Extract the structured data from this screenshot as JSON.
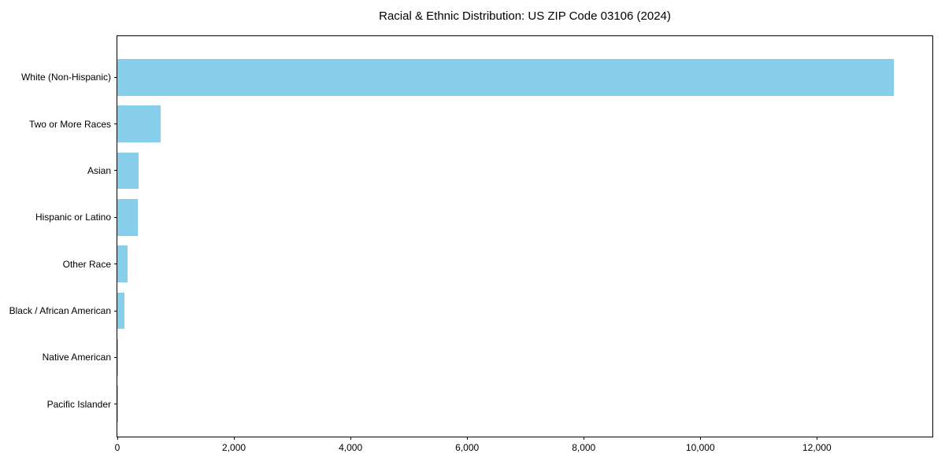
{
  "figure": {
    "background": "#ffffff",
    "text_color": "#000000"
  },
  "chart_data": {
    "type": "bar",
    "orientation": "horizontal",
    "title": "Racial & Ethnic Distribution: US ZIP Code 03106 (2024)",
    "categories": [
      "White (Non-Hispanic)",
      "Two or More Races",
      "Asian",
      "Hispanic or Latino",
      "Other Race",
      "Black / African American",
      "Native American",
      "Pacific Islander"
    ],
    "values": [
      13315,
      745,
      365,
      345,
      170,
      115,
      10,
      2
    ],
    "series_color": "#87CEEB",
    "axis_color": "#000000",
    "xlabel": "",
    "ylabel": "",
    "xlim": [
      0,
      13981
    ],
    "x_ticks": [
      0,
      2000,
      4000,
      6000,
      8000,
      10000,
      12000
    ],
    "x_tick_labels": [
      "0",
      "2,000",
      "4,000",
      "6,000",
      "8,000",
      "10,000",
      "12,000"
    ],
    "grid": false,
    "legend": false,
    "spines": "full-box"
  }
}
